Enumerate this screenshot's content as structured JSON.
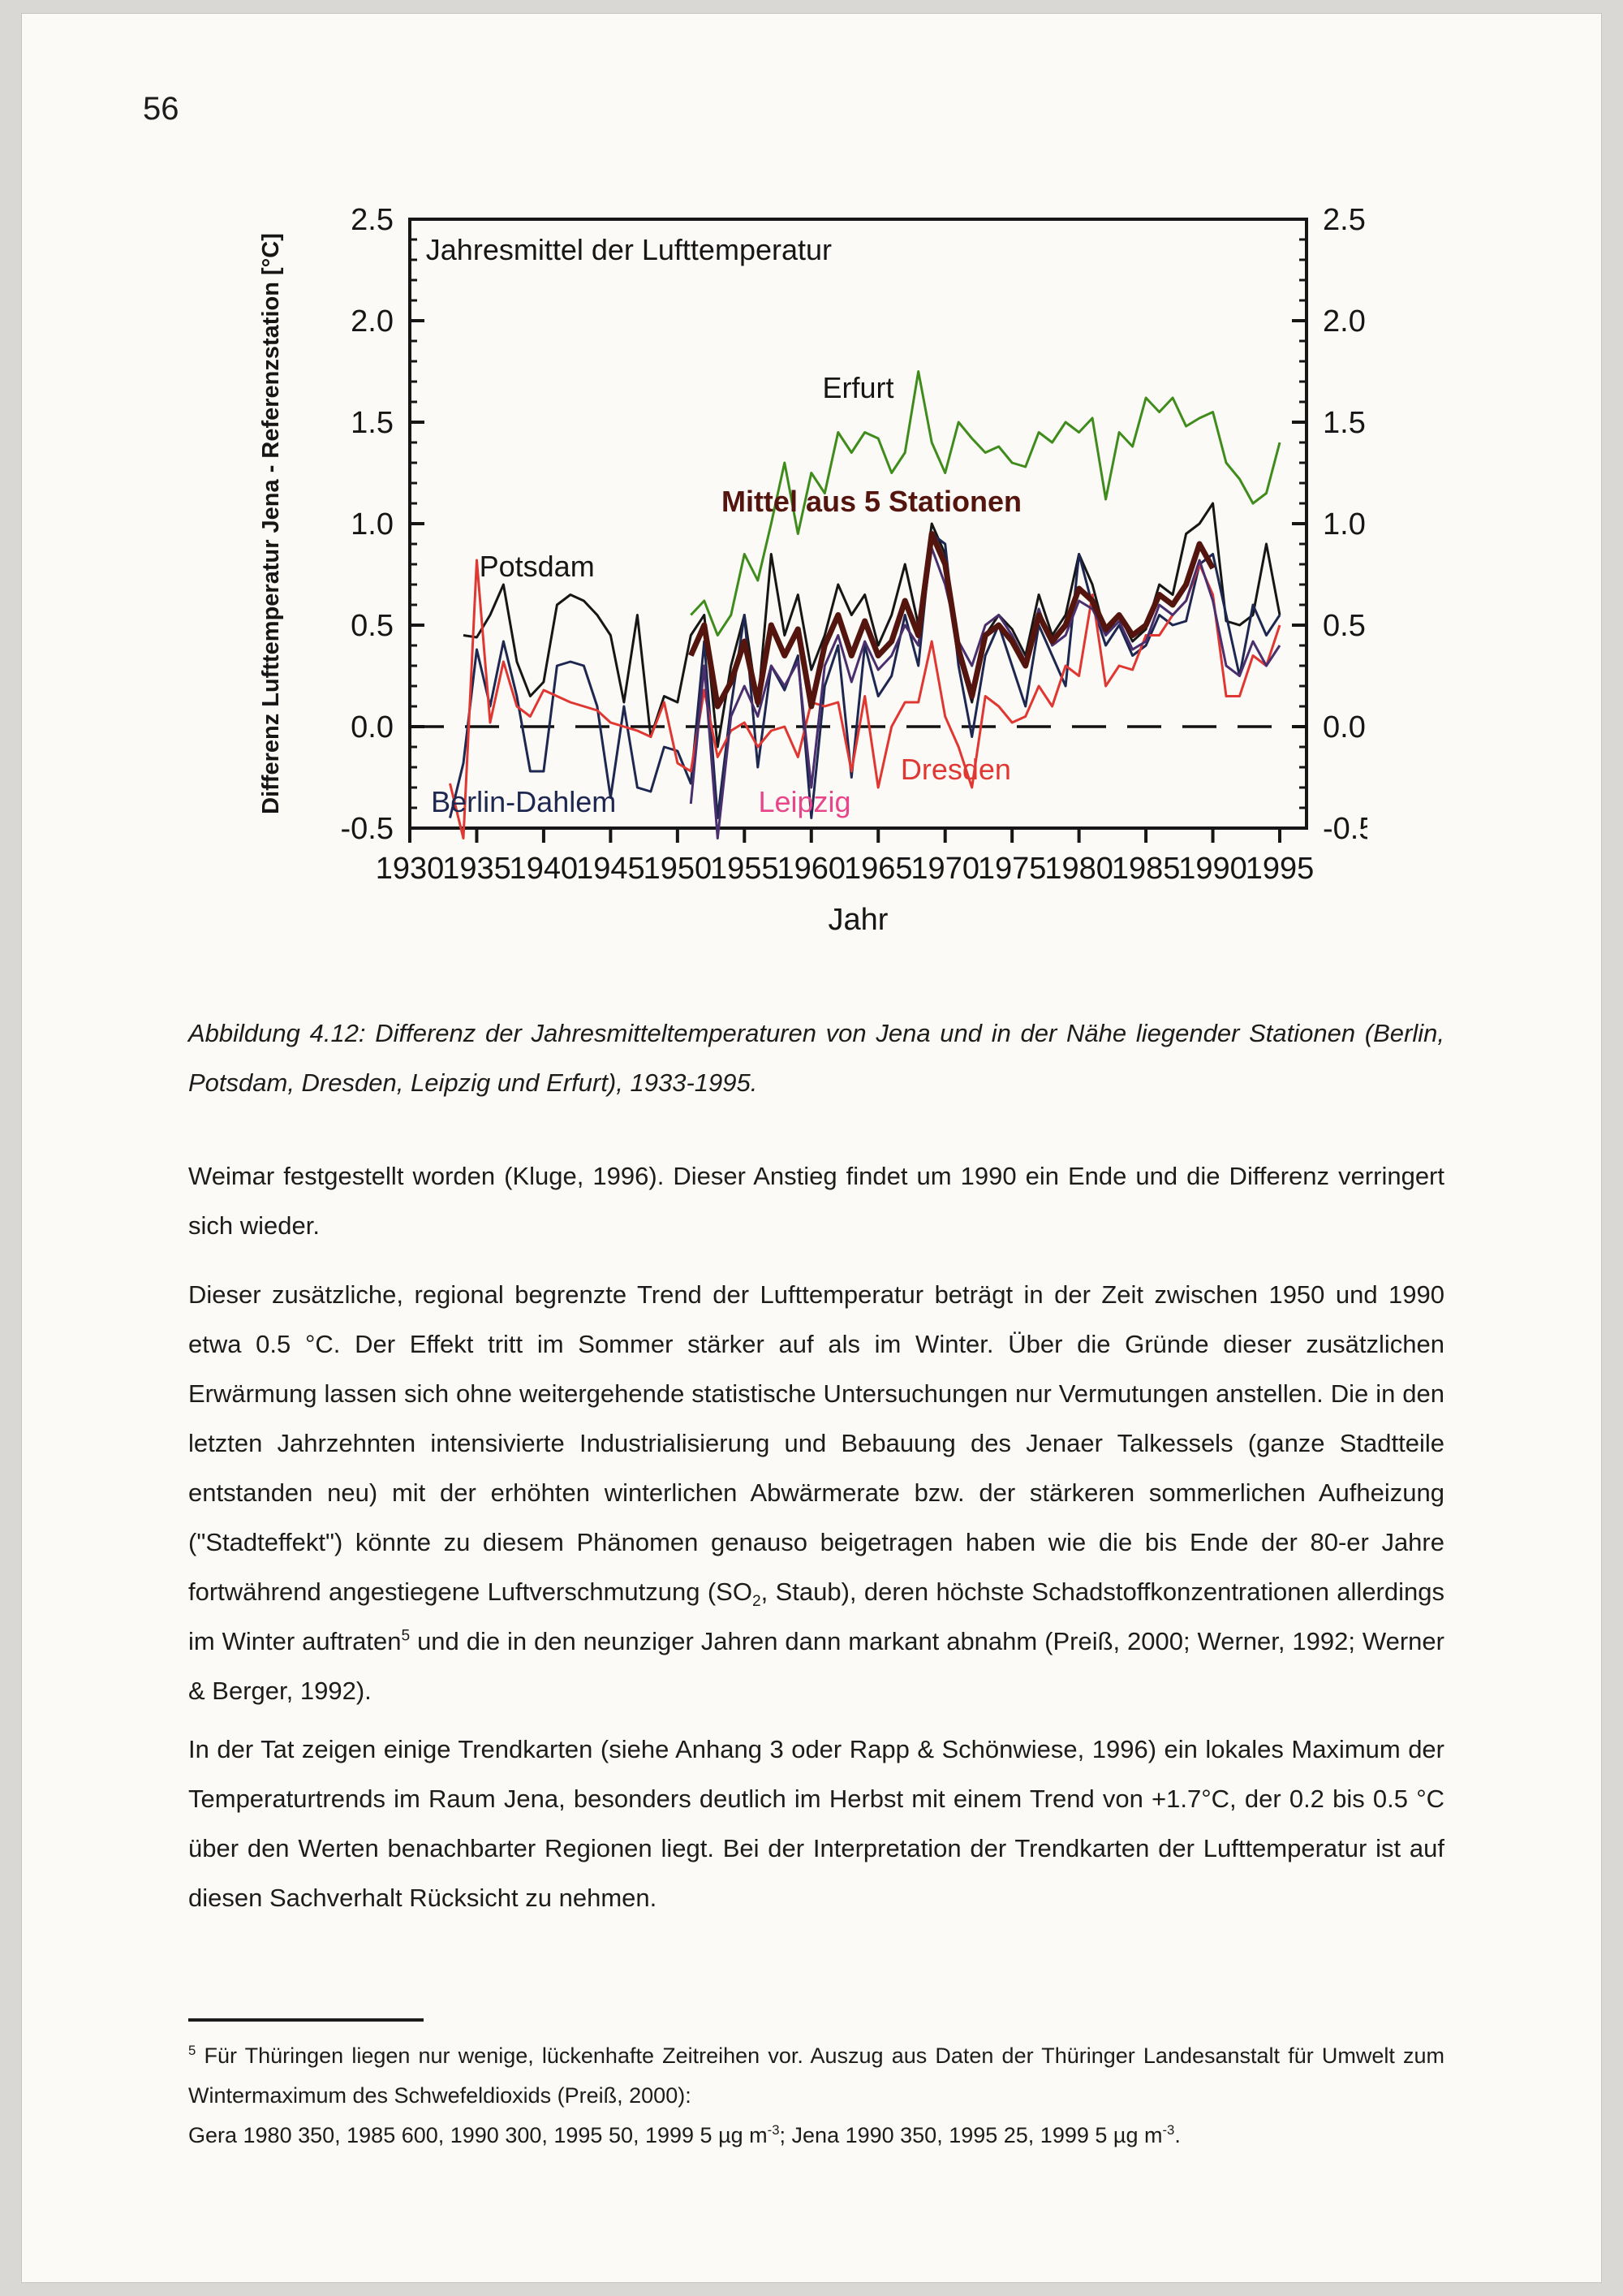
{
  "page": {
    "number": "56"
  },
  "chart_data": {
    "type": "line",
    "title": "Jahresmittel der Lufttemperatur",
    "xlabel": "Jahr",
    "ylabel": "Differenz Lufttemperatur Jena - Referenzstation [°C]",
    "xlim": [
      1930,
      1997
    ],
    "ylim": [
      -0.5,
      2.5
    ],
    "x_ticks": [
      1930,
      1935,
      1940,
      1945,
      1950,
      1955,
      1960,
      1965,
      1970,
      1975,
      1980,
      1985,
      1990,
      1995
    ],
    "y_ticks": [
      -0.5,
      0.0,
      0.5,
      1.0,
      1.5,
      2.0,
      2.5
    ],
    "y_minor_step": 0.1,
    "grid": false,
    "zero_line": {
      "y": 0.0,
      "style": "dashed",
      "color": "#111111"
    },
    "legend_position": "inline-labels",
    "series": [
      {
        "name": "Erfurt",
        "color": "#3f8c1c",
        "width": 3,
        "start_year": 1951,
        "values": [
          0.55,
          0.62,
          0.45,
          0.55,
          0.85,
          0.72,
          1.0,
          1.3,
          0.95,
          1.25,
          1.15,
          1.45,
          1.35,
          1.45,
          1.42,
          1.25,
          1.35,
          1.75,
          1.4,
          1.25,
          1.5,
          1.42,
          1.35,
          1.38,
          1.3,
          1.28,
          1.45,
          1.4,
          1.5,
          1.45,
          1.52,
          1.12,
          1.45,
          1.38,
          1.62,
          1.55,
          1.62,
          1.48,
          1.52,
          1.55,
          1.3,
          1.22,
          1.1,
          1.15,
          1.4
        ]
      },
      {
        "name": "Potsdam",
        "color": "#161616",
        "width": 3,
        "start_year": 1934,
        "values": [
          0.45,
          0.44,
          0.55,
          0.7,
          0.32,
          0.15,
          0.22,
          0.6,
          0.65,
          0.62,
          0.55,
          0.45,
          0.12,
          0.55,
          -0.05,
          0.15,
          0.12,
          0.45,
          0.55,
          -0.1,
          0.3,
          0.55,
          0.1,
          0.85,
          0.45,
          0.65,
          0.28,
          0.45,
          0.7,
          0.55,
          0.65,
          0.4,
          0.55,
          0.8,
          0.5,
          1.0,
          0.85,
          0.35,
          0.12,
          0.45,
          0.55,
          0.48,
          0.35,
          0.65,
          0.45,
          0.55,
          0.85,
          0.7,
          0.45,
          0.55,
          0.42,
          0.48,
          0.7,
          0.65,
          0.95,
          1.0,
          1.1,
          0.52,
          0.5,
          0.55,
          0.9,
          0.55
        ]
      },
      {
        "name": "Berlin-Dahlem",
        "color": "#1d2750",
        "width": 3,
        "start_year": 1933,
        "values": [
          -0.45,
          -0.18,
          0.38,
          0.1,
          0.42,
          0.15,
          -0.22,
          -0.22,
          0.3,
          0.32,
          0.3,
          0.1,
          -0.35,
          0.1,
          -0.3,
          -0.32,
          -0.1,
          -0.12,
          -0.28,
          0.42,
          -0.45,
          0.1,
          0.55,
          -0.2,
          0.3,
          0.18,
          0.35,
          -0.45,
          0.2,
          0.4,
          -0.25,
          0.4,
          0.15,
          0.25,
          0.55,
          0.3,
          0.95,
          0.9,
          0.3,
          -0.05,
          0.35,
          0.5,
          0.3,
          0.1,
          0.5,
          0.35,
          0.2,
          0.85,
          0.6,
          0.4,
          0.5,
          0.35,
          0.4,
          0.55,
          0.5,
          0.52,
          0.8,
          0.85,
          0.55,
          0.25,
          0.6,
          0.45,
          0.55
        ]
      },
      {
        "name": "Dresden",
        "color": "#df3832",
        "width": 3,
        "start_year": 1933,
        "values": [
          -0.28,
          -0.55,
          0.82,
          0.02,
          0.32,
          0.1,
          0.05,
          0.18,
          0.15,
          0.12,
          0.1,
          0.08,
          0.02,
          0.0,
          -0.02,
          -0.05,
          0.12,
          -0.18,
          -0.22,
          0.18,
          -0.15,
          -0.02,
          0.02,
          -0.1,
          -0.02,
          0.0,
          -0.15,
          0.12,
          0.1,
          0.12,
          -0.22,
          0.15,
          -0.3,
          0.0,
          0.12,
          0.12,
          0.42,
          0.05,
          -0.1,
          -0.3,
          0.15,
          0.1,
          0.02,
          0.05,
          0.2,
          0.1,
          0.3,
          0.25,
          0.65,
          0.2,
          0.3,
          0.28,
          0.45,
          0.45,
          0.55,
          0.62,
          0.8,
          0.65,
          0.15,
          0.15,
          0.35,
          0.3,
          0.5
        ]
      },
      {
        "name": "Leipzig",
        "color": "#4a2f6e",
        "width": 3,
        "start_year": 1951,
        "values": [
          -0.38,
          0.3,
          -0.55,
          0.05,
          0.2,
          0.05,
          0.3,
          0.2,
          0.32,
          -0.3,
          0.3,
          0.45,
          0.22,
          0.42,
          0.28,
          0.35,
          0.5,
          0.4,
          0.88,
          0.7,
          0.42,
          0.3,
          0.5,
          0.55,
          0.45,
          0.32,
          0.58,
          0.4,
          0.45,
          0.62,
          0.58,
          0.45,
          0.52,
          0.38,
          0.42,
          0.6,
          0.55,
          0.62,
          0.82,
          0.62,
          0.3,
          0.25,
          0.42,
          0.3,
          0.4
        ]
      },
      {
        "name": "Mittel aus 5 Stationen",
        "color": "#54150f",
        "width": 7,
        "start_year": 1951,
        "values": [
          0.35,
          0.5,
          0.1,
          0.22,
          0.42,
          0.12,
          0.5,
          0.35,
          0.48,
          0.1,
          0.4,
          0.55,
          0.35,
          0.52,
          0.35,
          0.42,
          0.62,
          0.45,
          0.95,
          0.8,
          0.38,
          0.15,
          0.45,
          0.5,
          0.42,
          0.3,
          0.55,
          0.42,
          0.5,
          0.68,
          0.62,
          0.48,
          0.55,
          0.45,
          0.5,
          0.65,
          0.6,
          0.7,
          0.9,
          0.78
        ]
      }
    ],
    "labels": [
      {
        "text": "Jahresmittel der Lufttemperatur",
        "x": 1931.2,
        "y": 2.3,
        "color": "#161616",
        "bold": false,
        "anchor": "start",
        "size": 36
      },
      {
        "text": "Erfurt",
        "x": 1963.5,
        "y": 1.62,
        "color": "#161616",
        "bold": false,
        "anchor": "middle",
        "size": 36
      },
      {
        "text": "Mittel aus 5 Stationen",
        "x": 1964.5,
        "y": 1.06,
        "color": "#54150f",
        "bold": true,
        "anchor": "middle",
        "size": 36
      },
      {
        "text": "Potsdam",
        "x": 1939.5,
        "y": 0.74,
        "color": "#161616",
        "bold": false,
        "anchor": "middle",
        "size": 36
      },
      {
        "text": "Berlin-Dahlem",
        "x": 1938.5,
        "y": -0.42,
        "color": "#1d2750",
        "bold": false,
        "anchor": "middle",
        "size": 36
      },
      {
        "text": "Leipzig",
        "x": 1959.5,
        "y": -0.42,
        "color": "#e8468a",
        "bold": false,
        "anchor": "middle",
        "size": 36
      },
      {
        "text": "Dresden",
        "x": 1970.8,
        "y": -0.26,
        "color": "#df3832",
        "bold": false,
        "anchor": "middle",
        "size": 36
      }
    ]
  },
  "caption": {
    "text": "Abbildung 4.12: Differenz der Jahresmitteltemperaturen von Jena und in der Nähe liegender Stationen (Berlin, Potsdam, Dresden, Leipzig und Erfurt), 1933-1995."
  },
  "body": {
    "p1": "Weimar festgestellt worden (Kluge, 1996). Dieser Anstieg findet um 1990 ein Ende und die Differenz verringert sich wieder.",
    "p2_parts": [
      {
        "s": "n",
        "t": "Dieser zusätzliche, regional begrenzte Trend der Lufttemperatur beträgt in der Zeit zwischen 1950 und 1990 etwa 0.5 °C. Der Effekt tritt im Sommer stärker auf als im Winter. Über die Gründe dieser zusätzlichen Erwärmung lassen sich ohne weitergehende statistische Untersuchungen nur Vermutungen anstellen. Die in den letzten Jahrzehnten intensivierte Industrialisierung und Bebauung des Jenaer Talkessels (ganze Stadtteile entstanden neu) mit der erhöhten winterlichen Abwärmerate bzw. der stärkeren sommerlichen Aufheizung (\"Stadteffekt\") könnte zu diesem Phänomen genauso beigetragen haben wie die bis Ende der 80-er Jahre fortwährend angestiegene Luftverschmutzung (SO"
      },
      {
        "s": "sub",
        "t": "2"
      },
      {
        "s": "n",
        "t": ", Staub), deren höchste Schadstoffkonzentrationen allerdings im Winter auftraten"
      },
      {
        "s": "sup",
        "t": "5"
      },
      {
        "s": "n",
        "t": " und die in den neunziger Jahren dann markant abnahm (Preiß, 2000; Werner, 1992; Werner & Berger, 1992)."
      }
    ],
    "p3": "In der Tat zeigen einige Trendkarten (siehe Anhang 3 oder Rapp & Schönwiese, 1996) ein lokales Maximum der Temperaturtrends im Raum Jena, besonders deutlich im Herbst mit einem Trend von +1.7°C, der 0.2 bis 0.5 °C über den Werten benachbarter Regionen liegt. Bei der Interpretation der Trendkarten der Lufttemperatur ist auf diesen Sachverhalt Rücksicht zu nehmen."
  },
  "footnote": {
    "line1_parts": [
      {
        "s": "sup",
        "t": "5"
      },
      {
        "s": "n",
        "t": " Für Thüringen liegen nur wenige, lückenhafte Zeitreihen vor. Auszug aus Daten der Thüringer Landesanstalt für Umwelt zum Wintermaximum des Schwefeldioxids (Preiß, 2000):"
      }
    ],
    "line2_parts": [
      {
        "s": "n",
        "t": "Gera 1980 350, 1985 600, 1990 300, 1995 50, 1999 5 µg m"
      },
      {
        "s": "sup",
        "t": "-3"
      },
      {
        "s": "n",
        "t": "; Jena 1990 350, 1995 25, 1999 5 µg m"
      },
      {
        "s": "sup",
        "t": "-3"
      },
      {
        "s": "n",
        "t": "."
      }
    ]
  }
}
